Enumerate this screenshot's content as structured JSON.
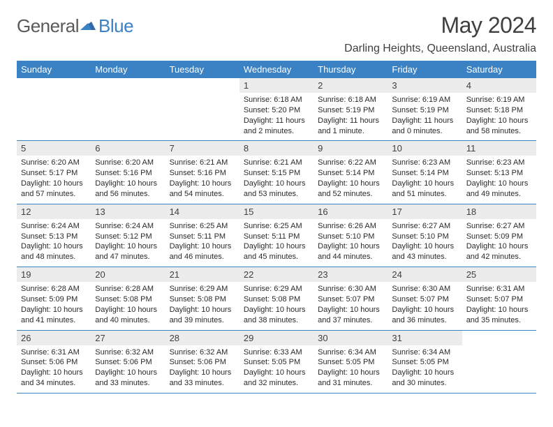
{
  "logo": {
    "general": "General",
    "blue": "Blue"
  },
  "title": "May 2024",
  "location": "Darling Heights, Queensland, Australia",
  "colors": {
    "header_bg": "#3b82c4",
    "daynum_bg": "#ececec",
    "text": "#404040",
    "line": "#3b82c4"
  },
  "weekdays": [
    "Sunday",
    "Monday",
    "Tuesday",
    "Wednesday",
    "Thursday",
    "Friday",
    "Saturday"
  ],
  "weeks": [
    {
      "nums": [
        "",
        "",
        "",
        "1",
        "2",
        "3",
        "4"
      ],
      "cells": [
        "",
        "",
        "",
        "Sunrise: 6:18 AM\nSunset: 5:20 PM\nDaylight: 11 hours and 2 minutes.",
        "Sunrise: 6:18 AM\nSunset: 5:19 PM\nDaylight: 11 hours and 1 minute.",
        "Sunrise: 6:19 AM\nSunset: 5:19 PM\nDaylight: 11 hours and 0 minutes.",
        "Sunrise: 6:19 AM\nSunset: 5:18 PM\nDaylight: 10 hours and 58 minutes."
      ]
    },
    {
      "nums": [
        "5",
        "6",
        "7",
        "8",
        "9",
        "10",
        "11"
      ],
      "cells": [
        "Sunrise: 6:20 AM\nSunset: 5:17 PM\nDaylight: 10 hours and 57 minutes.",
        "Sunrise: 6:20 AM\nSunset: 5:16 PM\nDaylight: 10 hours and 56 minutes.",
        "Sunrise: 6:21 AM\nSunset: 5:16 PM\nDaylight: 10 hours and 54 minutes.",
        "Sunrise: 6:21 AM\nSunset: 5:15 PM\nDaylight: 10 hours and 53 minutes.",
        "Sunrise: 6:22 AM\nSunset: 5:14 PM\nDaylight: 10 hours and 52 minutes.",
        "Sunrise: 6:23 AM\nSunset: 5:14 PM\nDaylight: 10 hours and 51 minutes.",
        "Sunrise: 6:23 AM\nSunset: 5:13 PM\nDaylight: 10 hours and 49 minutes."
      ]
    },
    {
      "nums": [
        "12",
        "13",
        "14",
        "15",
        "16",
        "17",
        "18"
      ],
      "cells": [
        "Sunrise: 6:24 AM\nSunset: 5:13 PM\nDaylight: 10 hours and 48 minutes.",
        "Sunrise: 6:24 AM\nSunset: 5:12 PM\nDaylight: 10 hours and 47 minutes.",
        "Sunrise: 6:25 AM\nSunset: 5:11 PM\nDaylight: 10 hours and 46 minutes.",
        "Sunrise: 6:25 AM\nSunset: 5:11 PM\nDaylight: 10 hours and 45 minutes.",
        "Sunrise: 6:26 AM\nSunset: 5:10 PM\nDaylight: 10 hours and 44 minutes.",
        "Sunrise: 6:27 AM\nSunset: 5:10 PM\nDaylight: 10 hours and 43 minutes.",
        "Sunrise: 6:27 AM\nSunset: 5:09 PM\nDaylight: 10 hours and 42 minutes."
      ]
    },
    {
      "nums": [
        "19",
        "20",
        "21",
        "22",
        "23",
        "24",
        "25"
      ],
      "cells": [
        "Sunrise: 6:28 AM\nSunset: 5:09 PM\nDaylight: 10 hours and 41 minutes.",
        "Sunrise: 6:28 AM\nSunset: 5:08 PM\nDaylight: 10 hours and 40 minutes.",
        "Sunrise: 6:29 AM\nSunset: 5:08 PM\nDaylight: 10 hours and 39 minutes.",
        "Sunrise: 6:29 AM\nSunset: 5:08 PM\nDaylight: 10 hours and 38 minutes.",
        "Sunrise: 6:30 AM\nSunset: 5:07 PM\nDaylight: 10 hours and 37 minutes.",
        "Sunrise: 6:30 AM\nSunset: 5:07 PM\nDaylight: 10 hours and 36 minutes.",
        "Sunrise: 6:31 AM\nSunset: 5:07 PM\nDaylight: 10 hours and 35 minutes."
      ]
    },
    {
      "nums": [
        "26",
        "27",
        "28",
        "29",
        "30",
        "31",
        ""
      ],
      "cells": [
        "Sunrise: 6:31 AM\nSunset: 5:06 PM\nDaylight: 10 hours and 34 minutes.",
        "Sunrise: 6:32 AM\nSunset: 5:06 PM\nDaylight: 10 hours and 33 minutes.",
        "Sunrise: 6:32 AM\nSunset: 5:06 PM\nDaylight: 10 hours and 33 minutes.",
        "Sunrise: 6:33 AM\nSunset: 5:05 PM\nDaylight: 10 hours and 32 minutes.",
        "Sunrise: 6:34 AM\nSunset: 5:05 PM\nDaylight: 10 hours and 31 minutes.",
        "Sunrise: 6:34 AM\nSunset: 5:05 PM\nDaylight: 10 hours and 30 minutes.",
        ""
      ]
    }
  ]
}
